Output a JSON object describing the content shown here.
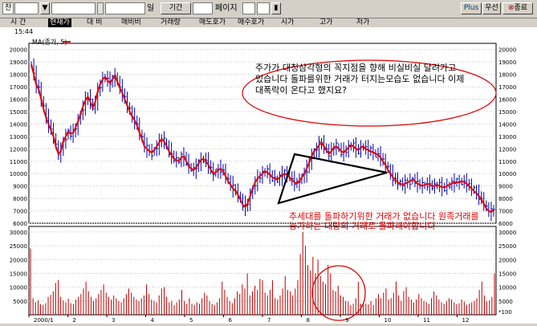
{
  "toolbar": {
    "code_box": "찬",
    "field1": "",
    "field2": "",
    "field3": "",
    "period_unit": "일",
    "period_label": "기간",
    "page_label": "페이지",
    "plus_label": "Plus",
    "priority_label": "우선",
    "close_label": "종료"
  },
  "tabs": [
    "시 간",
    "현재가",
    "대 비",
    "매비비",
    "거래량",
    "매도호가",
    "매수호가",
    "시가",
    "고가",
    "저가"
  ],
  "active_tab": 1,
  "time_readout": "15:44",
  "legend": "MA(종가, 5)",
  "annotations": {
    "ellipse_text": "주가가 대칭삼각형의 꼭지점을 향해 비실비실 달려가고 있습니다 돌파를위한 거래가 터지는모습도 없습니다 이제 대폭락이 온다고 했지요?",
    "volume_text": "추세대를 돌파하기위한 거래가 없습니다 원족거래를 능가하는 대량의 거래로 돌파해야합니다"
  },
  "colors": {
    "price_bar": "#0000b0",
    "ma_line": "#e00000",
    "volume": "#c00000",
    "annotation": "#e00000",
    "triangle": "#000000",
    "background": "#ffffff",
    "panel": "#d4d0c8"
  },
  "chart_data": [
    {
      "type": "line",
      "series": [
        {
          "name": "MA(종가, 5)",
          "values": [
            18800,
            18000,
            17200,
            16800,
            16000,
            15200,
            14500,
            14000,
            13500,
            13000,
            12200,
            11600,
            11800,
            12600,
            13000,
            13400,
            13200,
            13300,
            13700,
            14200,
            14800,
            15400,
            15900,
            16200,
            15800,
            15300,
            15800,
            16600,
            17200,
            17600,
            17800,
            17500,
            17300,
            17600,
            17900,
            17400,
            16900,
            16500,
            16000,
            15500,
            15000,
            14600,
            14300,
            13900,
            13300,
            12800,
            12200,
            12000,
            11800,
            11700,
            11900,
            12200,
            12500,
            12800,
            12600,
            12200,
            11800,
            11500,
            11200,
            11100,
            11000,
            11300,
            11400,
            11000,
            10600,
            10400,
            10300,
            10500,
            10800,
            11100,
            11200,
            11000,
            10700,
            10300,
            10000,
            10100,
            10300,
            10400,
            10200,
            9800,
            9400,
            9100,
            8800,
            8600,
            8300,
            7900,
            7500,
            7300,
            7600,
            8200,
            8800,
            9300,
            9600,
            9800,
            10000,
            10200,
            10100,
            9900,
            9700,
            9600,
            9500,
            9700,
            9900,
            10000,
            9900,
            9700,
            9500,
            9300,
            9200,
            9400,
            9700,
            10000,
            10400,
            10900,
            11400,
            11800,
            12000,
            12300,
            12500,
            12200,
            11900,
            11600,
            11800,
            12100,
            12200,
            12000,
            11800,
            11700,
            11900,
            12100,
            12300,
            12200,
            12000,
            11900,
            12100,
            12200,
            12000,
            11900,
            11800,
            11700,
            11600,
            11500,
            11300,
            11000,
            10700,
            10300,
            10000,
            9700,
            9500,
            9300,
            9200,
            9100,
            9200,
            9300,
            9400,
            9500,
            9400,
            9200,
            9100,
            9000,
            9100,
            9200,
            9100,
            9000,
            9000,
            9100,
            9000,
            8900,
            8900,
            9000,
            9100,
            9200,
            9300,
            9300,
            9300,
            9400,
            9300,
            9200,
            9000,
            8800,
            8600,
            8400,
            8200,
            7900,
            7600,
            7200,
            7000,
            6900,
            7100
          ]
        }
      ],
      "ylim": [
        6000,
        20500
      ],
      "yticks": [
        6000,
        7000,
        8000,
        9000,
        10000,
        11000,
        12000,
        13000,
        14000,
        15000,
        16000,
        17000,
        18000,
        19000,
        20000
      ],
      "ylabels_left": [
        "6000",
        "7000",
        "8000",
        "9000",
        "10000",
        "11000",
        "12000",
        "13000",
        "14000",
        "15000",
        "16000",
        "17000",
        "18000",
        "19000",
        "20000"
      ],
      "ylabels_right": [
        "6000",
        "7000",
        "8000",
        "9000",
        "10000",
        "11000",
        "12000",
        "13000",
        "14000",
        "15000",
        "16000",
        "17000",
        "18000",
        "19000",
        "20000"
      ]
    },
    {
      "type": "bar",
      "series": [
        {
          "name": "거래량",
          "values": [
            24000,
            6000,
            4500,
            5200,
            3800,
            3600,
            4200,
            6500,
            7200,
            8500,
            11500,
            12500,
            6500,
            5200,
            4500,
            5800,
            4200,
            3800,
            5500,
            6500,
            7500,
            9500,
            12000,
            8500,
            6500,
            5000,
            6000,
            7500,
            9000,
            11000,
            8000,
            6500,
            5500,
            7000,
            6000,
            5000,
            4500,
            6000,
            7500,
            9500,
            8000,
            6500,
            5500,
            5000,
            6000,
            7000,
            11000,
            7500,
            5500,
            5000,
            4500,
            7000,
            9500,
            10000,
            6500,
            4500,
            5000,
            3500,
            4500,
            5500,
            9000,
            5000,
            4000,
            6000,
            4000,
            3500,
            4500,
            4000,
            6000,
            8000,
            7000,
            5000,
            4000,
            3500,
            4500,
            6000,
            12000,
            9000,
            6500,
            5000,
            4200,
            6000,
            8500,
            7500,
            11000,
            9500,
            15000,
            7000,
            8500,
            10500,
            9000,
            13000,
            12500,
            8000,
            7000,
            9000,
            12500,
            6000,
            5500,
            7000,
            9500,
            14000,
            9000,
            8500,
            7000,
            9500,
            12500,
            22000,
            30000,
            25000,
            18000,
            16000,
            21000,
            15000,
            20000,
            14000,
            12000,
            11000,
            18000,
            15000,
            9000,
            8500,
            10500,
            7000,
            6500,
            5000,
            4800,
            3500,
            4000,
            6000,
            12000,
            4000,
            4500,
            4000,
            3800,
            5000,
            3500,
            6000,
            7500,
            6000,
            8000,
            9500,
            5500,
            6000,
            8000,
            12000,
            7000,
            5000,
            8500,
            10000,
            6500,
            5500,
            4500,
            5500,
            7500,
            6000,
            5000,
            4500,
            4000,
            6000,
            8500,
            7000,
            5500,
            4500,
            4000,
            5000,
            6000,
            5500,
            4500,
            3800,
            4200,
            5500,
            4800,
            3600,
            4000,
            4500,
            5000,
            6000,
            9000,
            12000,
            7000,
            4800,
            5200,
            6500,
            15000
          ]
        }
      ],
      "ylim": [
        0,
        32000
      ],
      "yticks": [
        5000,
        10000,
        15000,
        20000,
        25000,
        30000
      ],
      "ylabels_left": [
        "5000",
        "10000",
        "15000",
        "20000",
        "25000",
        "30000"
      ],
      "ylabels_right": [
        "5000",
        "10000",
        "15000",
        "20000",
        "25000",
        "30000"
      ],
      "unit_label": "*100",
      "x_labels": [
        "2000/1",
        "2",
        "3",
        "4",
        "5",
        "6",
        "7",
        "8",
        "9",
        "10",
        "11",
        "12"
      ]
    }
  ]
}
